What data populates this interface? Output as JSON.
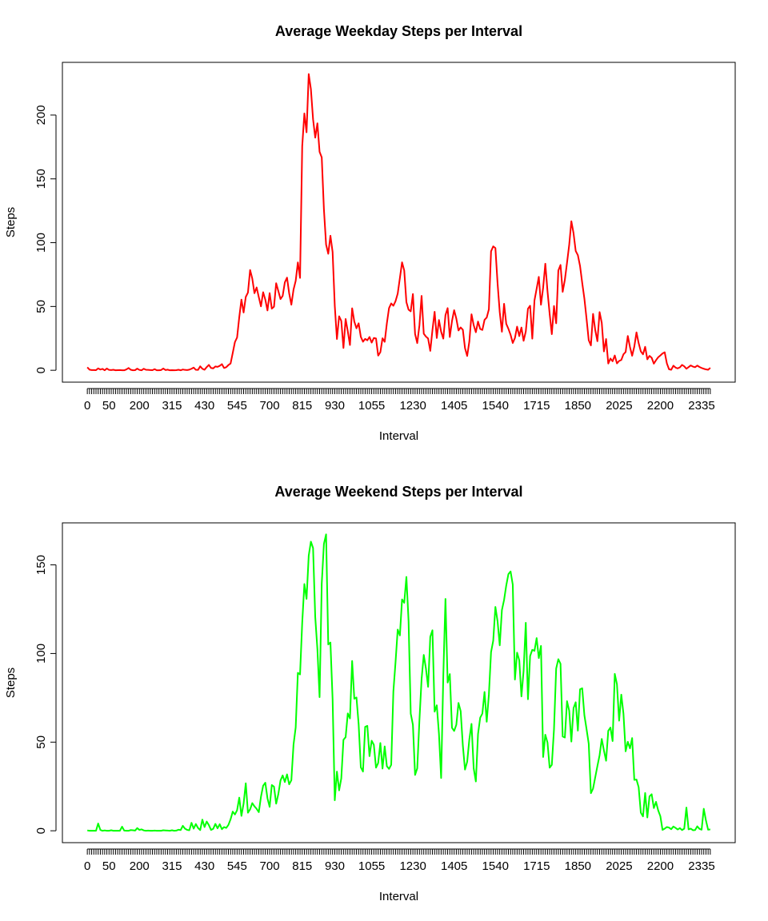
{
  "chart_data": [
    {
      "type": "line",
      "title": "Average Weekday Steps per Interval",
      "x_label": "Interval",
      "y_label": "Steps",
      "color": "#ff0000",
      "ylim": [
        -9.3,
        241.3
      ],
      "yticks": [
        0,
        50,
        100,
        150,
        200
      ],
      "categories": [
        "0",
        null,
        null,
        null,
        null,
        null,
        null,
        null,
        null,
        null,
        "50",
        null,
        null,
        null,
        null,
        null,
        null,
        null,
        null,
        null,
        null,
        null,
        null,
        null,
        "200",
        null,
        null,
        null,
        null,
        null,
        null,
        null,
        null,
        null,
        null,
        null,
        null,
        null,
        null,
        "315",
        null,
        null,
        null,
        null,
        null,
        null,
        null,
        null,
        null,
        null,
        null,
        null,
        null,
        null,
        "430",
        null,
        null,
        null,
        null,
        null,
        null,
        null,
        null,
        null,
        null,
        null,
        null,
        null,
        null,
        "545",
        null,
        null,
        null,
        null,
        null,
        null,
        null,
        null,
        null,
        null,
        null,
        null,
        null,
        null,
        "700",
        null,
        null,
        null,
        null,
        null,
        null,
        null,
        null,
        null,
        null,
        null,
        null,
        null,
        null,
        "815",
        null,
        null,
        null,
        null,
        null,
        null,
        null,
        null,
        null,
        null,
        null,
        null,
        null,
        null,
        "930",
        null,
        null,
        null,
        null,
        null,
        null,
        null,
        null,
        null,
        null,
        null,
        null,
        null,
        null,
        null,
        null,
        "1055",
        null,
        null,
        null,
        null,
        null,
        null,
        null,
        null,
        null,
        null,
        null,
        null,
        null,
        null,
        null,
        null,
        null,
        null,
        "1230",
        null,
        null,
        null,
        null,
        null,
        null,
        null,
        null,
        null,
        null,
        null,
        null,
        null,
        null,
        null,
        null,
        null,
        null,
        "1405",
        null,
        null,
        null,
        null,
        null,
        null,
        null,
        null,
        null,
        null,
        null,
        null,
        null,
        null,
        null,
        null,
        null,
        null,
        "1540",
        null,
        null,
        null,
        null,
        null,
        null,
        null,
        null,
        null,
        null,
        null,
        null,
        null,
        null,
        null,
        null,
        null,
        null,
        "1715",
        null,
        null,
        null,
        null,
        null,
        null,
        null,
        null,
        null,
        null,
        null,
        null,
        null,
        null,
        null,
        null,
        null,
        null,
        "1850",
        null,
        null,
        null,
        null,
        null,
        null,
        null,
        null,
        null,
        null,
        null,
        null,
        null,
        null,
        null,
        null,
        null,
        null,
        "2025",
        null,
        null,
        null,
        null,
        null,
        null,
        null,
        null,
        null,
        null,
        null,
        null,
        null,
        null,
        null,
        null,
        null,
        null,
        "2200",
        null,
        null,
        null,
        null,
        null,
        null,
        null,
        null,
        null,
        null,
        null,
        null,
        null,
        null,
        null,
        null,
        null,
        null,
        "2335",
        null,
        null,
        null,
        null
      ],
      "values": [
        2.3,
        0.5,
        0.2,
        0.2,
        0.1,
        1.5,
        0.6,
        1.1,
        0,
        1.4,
        0.3,
        0.2,
        0.4,
        0,
        0.1,
        0.2,
        0,
        0,
        0.7,
        1.8,
        0.4,
        0,
        0.1,
        1.3,
        0.3,
        0,
        1.2,
        0.4,
        0.3,
        0.2,
        0.1,
        0.9,
        0,
        0,
        0.2,
        1.4,
        0.2,
        0.5,
        0,
        0.1,
        0,
        0.1,
        0.4,
        0,
        0.6,
        0.3,
        0.2,
        0.5,
        1.2,
        2.1,
        0.4,
        0.3,
        3.1,
        1.2,
        0.4,
        2.5,
        4.2,
        1.8,
        1.5,
        3.0,
        2.7,
        3.5,
        4.8,
        1.8,
        2.4,
        4.1,
        5.3,
        13.6,
        22.1,
        25.7,
        41.7,
        55.4,
        45.3,
        57.5,
        60.9,
        78.6,
        71.8,
        60.4,
        64.9,
        57.3,
        50.1,
        61.2,
        55.4,
        46.9,
        60.5,
        48.3,
        49.8,
        68.2,
        62.1,
        55.8,
        58.3,
        68.9,
        72.6,
        60.2,
        51.4,
        63.2,
        70.1,
        84.5,
        72.4,
        175.5,
        201.3,
        186.5,
        232.1,
        220.4,
        196.7,
        182.3,
        193.5,
        171.2,
        166.8,
        126.2,
        98.5,
        91.3,
        105.4,
        92.7,
        50.6,
        24.5,
        42.3,
        38.7,
        17.5,
        40.2,
        30.5,
        19.8,
        48.6,
        38.2,
        32.9,
        36.8,
        26.2,
        22.4,
        24.6,
        23.5,
        26.1,
        21.7,
        25.3,
        24.9,
        11.5,
        14.2,
        25.1,
        22.3,
        36.8,
        48.7,
        52.4,
        50.6,
        54.2,
        60.1,
        72.3,
        84.6,
        78.2,
        53.4,
        47.5,
        46.2,
        59.8,
        28.4,
        21.3,
        35.2,
        58.3,
        28.7,
        26.4,
        24.9,
        15.2,
        31.5,
        45.8,
        25.3,
        39.4,
        30.2,
        24.8,
        43.2,
        48.7,
        26.1,
        38.5,
        47.1,
        40.5,
        31.2,
        33.6,
        31.8,
        17.4,
        11.2,
        22.6,
        43.9,
        35.4,
        29.8,
        38.2,
        32.4,
        31.6,
        39.5,
        41.3,
        47.8,
        93.2,
        97.1,
        95.8,
        68.3,
        45.6,
        30.2,
        52.1,
        36.4,
        32.5,
        27.8,
        21.4,
        25.3,
        34.2,
        26.8,
        33.5,
        23.1,
        30.4,
        48.2,
        50.6,
        24.8,
        54.7,
        63.9,
        73.2,
        51.4,
        64.8,
        83.5,
        62.1,
        44.2,
        28.3,
        50.4,
        36.8,
        78.2,
        82.5,
        61.5,
        70.8,
        84.3,
        98.2,
        116.8,
        107.4,
        93.5,
        90.2,
        81.7,
        68.5,
        56.2,
        40.3,
        23.6,
        19.5,
        44.2,
        31.5,
        22.8,
        45.6,
        37.2,
        14.8,
        24.5,
        5.3,
        9.2,
        7.1,
        11.6,
        5.4,
        7.3,
        8.1,
        12.5,
        14.3,
        26.9,
        18.2,
        11.4,
        18.6,
        29.7,
        21.3,
        14.8,
        12.5,
        18.4,
        8.6,
        11.3,
        9.8,
        5.2,
        7.9,
        10.2,
        11.6,
        13.2,
        14.1,
        5.4,
        0.8,
        0.4,
        3.6,
        2.1,
        1.5,
        2.3,
        4.2,
        3.1,
        1.2,
        2.5,
        3.8,
        2.9,
        2.4,
        3.7,
        2.6,
        1.8,
        1.2,
        0.7,
        0.4,
        1.9
      ]
    },
    {
      "type": "line",
      "title": "Average Weekend Steps per Interval",
      "x_label": "Interval",
      "y_label": "Steps",
      "color": "#00ff00",
      "ylim": [
        -6.7,
        173.7
      ],
      "yticks": [
        0,
        50,
        100,
        150
      ],
      "categories": [
        "0",
        null,
        null,
        null,
        null,
        null,
        null,
        null,
        null,
        null,
        "50",
        null,
        null,
        null,
        null,
        null,
        null,
        null,
        null,
        null,
        null,
        null,
        null,
        null,
        "200",
        null,
        null,
        null,
        null,
        null,
        null,
        null,
        null,
        null,
        null,
        null,
        null,
        null,
        null,
        "315",
        null,
        null,
        null,
        null,
        null,
        null,
        null,
        null,
        null,
        null,
        null,
        null,
        null,
        null,
        "430",
        null,
        null,
        null,
        null,
        null,
        null,
        null,
        null,
        null,
        null,
        null,
        null,
        null,
        null,
        "545",
        null,
        null,
        null,
        null,
        null,
        null,
        null,
        null,
        null,
        null,
        null,
        null,
        null,
        null,
        "700",
        null,
        null,
        null,
        null,
        null,
        null,
        null,
        null,
        null,
        null,
        null,
        null,
        null,
        null,
        "815",
        null,
        null,
        null,
        null,
        null,
        null,
        null,
        null,
        null,
        null,
        null,
        null,
        null,
        null,
        "930",
        null,
        null,
        null,
        null,
        null,
        null,
        null,
        null,
        null,
        null,
        null,
        null,
        null,
        null,
        null,
        null,
        "1055",
        null,
        null,
        null,
        null,
        null,
        null,
        null,
        null,
        null,
        null,
        null,
        null,
        null,
        null,
        null,
        null,
        null,
        null,
        "1230",
        null,
        null,
        null,
        null,
        null,
        null,
        null,
        null,
        null,
        null,
        null,
        null,
        null,
        null,
        null,
        null,
        null,
        null,
        "1405",
        null,
        null,
        null,
        null,
        null,
        null,
        null,
        null,
        null,
        null,
        null,
        null,
        null,
        null,
        null,
        null,
        null,
        null,
        "1540",
        null,
        null,
        null,
        null,
        null,
        null,
        null,
        null,
        null,
        null,
        null,
        null,
        null,
        null,
        null,
        null,
        null,
        null,
        "1715",
        null,
        null,
        null,
        null,
        null,
        null,
        null,
        null,
        null,
        null,
        null,
        null,
        null,
        null,
        null,
        null,
        null,
        null,
        "1850",
        null,
        null,
        null,
        null,
        null,
        null,
        null,
        null,
        null,
        null,
        null,
        null,
        null,
        null,
        null,
        null,
        null,
        null,
        "2025",
        null,
        null,
        null,
        null,
        null,
        null,
        null,
        null,
        null,
        null,
        null,
        null,
        null,
        null,
        null,
        null,
        null,
        null,
        "2200",
        null,
        null,
        null,
        null,
        null,
        null,
        null,
        null,
        null,
        null,
        null,
        null,
        null,
        null,
        null,
        null,
        null,
        null,
        "2335",
        null,
        null,
        null,
        null
      ],
      "values": [
        0.2,
        0,
        0,
        0,
        0,
        4.1,
        0.5,
        0,
        0.2,
        0,
        0,
        0.3,
        0,
        0,
        0,
        0,
        2.3,
        0.1,
        0,
        0,
        0.4,
        0.3,
        0.1,
        1.5,
        0.5,
        0.8,
        0.2,
        0,
        0.1,
        0,
        0,
        0.1,
        0,
        0,
        0,
        0.3,
        0.2,
        0.1,
        0,
        0.3,
        0,
        0.1,
        0.6,
        0.4,
        2.8,
        1.2,
        0.5,
        0.3,
        4.5,
        1.2,
        3.8,
        1.6,
        0.4,
        6.3,
        2.1,
        5.2,
        3.2,
        0.5,
        1.1,
        3.9,
        1.4,
        3.7,
        0.9,
        2.1,
        1.6,
        3.3,
        6.5,
        10.8,
        9.2,
        11.6,
        18.7,
        8.4,
        15.3,
        26.8,
        10.2,
        12.1,
        15.6,
        13.8,
        12.4,
        10.5,
        19.2,
        25.4,
        27.1,
        18.3,
        13.5,
        25.8,
        24.9,
        15.3,
        20.7,
        28.4,
        31.2,
        27.5,
        31.8,
        26.2,
        28.5,
        48.6,
        58.3,
        89.1,
        88.2,
        117.3,
        139.2,
        130.8,
        155.2,
        163.1,
        159.5,
        120.6,
        102.4,
        75.4,
        139.5,
        161.8,
        167.2,
        105.1,
        106.2,
        74.3,
        17.2,
        33.4,
        22.8,
        29.5,
        51.3,
        52.8,
        66.2,
        63.4,
        95.8,
        74.5,
        75.2,
        60.1,
        35.8,
        33.4,
        58.6,
        59.2,
        42.1,
        50.8,
        48.5,
        35.6,
        38.2,
        49.5,
        35.1,
        47.6,
        36.4,
        34.9,
        37.2,
        78.6,
        95.2,
        113.5,
        110.2,
        130.5,
        128.6,
        143.2,
        118.3,
        66.1,
        59.8,
        31.5,
        35.2,
        62.3,
        85.6,
        99.2,
        91.5,
        81.2,
        109.4,
        113.1,
        67.2,
        70.8,
        54.8,
        29.8,
        87.3,
        130.8,
        83.6,
        88.4,
        58.1,
        56.3,
        59.8,
        72.1,
        67.5,
        48.2,
        34.5,
        38.9,
        51.6,
        60.3,
        35.2,
        27.8,
        54.6,
        63.8,
        66.1,
        78.3,
        61.5,
        76.8,
        100.8,
        107.2,
        126.3,
        118.2,
        104.6,
        124.5,
        130.2,
        138.4,
        144.8,
        146.3,
        138.9,
        85.3,
        100.5,
        96.2,
        75.8,
        90.3,
        117.3,
        74.2,
        98.6,
        102.1,
        101.5,
        108.7,
        97.4,
        104.3,
        41.6,
        54.2,
        49.8,
        35.6,
        37.2,
        57.3,
        91.5,
        96.8,
        94.2,
        53.2,
        52.6,
        73.1,
        67.8,
        50.3,
        69.2,
        72.5,
        56.5,
        79.8,
        80.4,
        65.2,
        57.3,
        49.1,
        21.2,
        23.8,
        30.2,
        36.5,
        42.6,
        51.8,
        45.3,
        39.5,
        56.4,
        58.2,
        50.6,
        88.5,
        82.7,
        62.1,
        76.8,
        66.1,
        44.8,
        50.2,
        46.5,
        52.3,
        28.7,
        28.9,
        24.6,
        10.2,
        8.1,
        21.3,
        7.5,
        19.4,
        20.6,
        12.8,
        16.3,
        11.5,
        8.2,
        0.5,
        1.2,
        2.1,
        1.8,
        0.9,
        2.4,
        1.6,
        0.7,
        1.5,
        0.4,
        1.2,
        13.1,
        0.8,
        1.2,
        0.3,
        0.4,
        2.5,
        1.1,
        0.6,
        12.4,
        5.8,
        0.6,
        0.8
      ]
    }
  ]
}
